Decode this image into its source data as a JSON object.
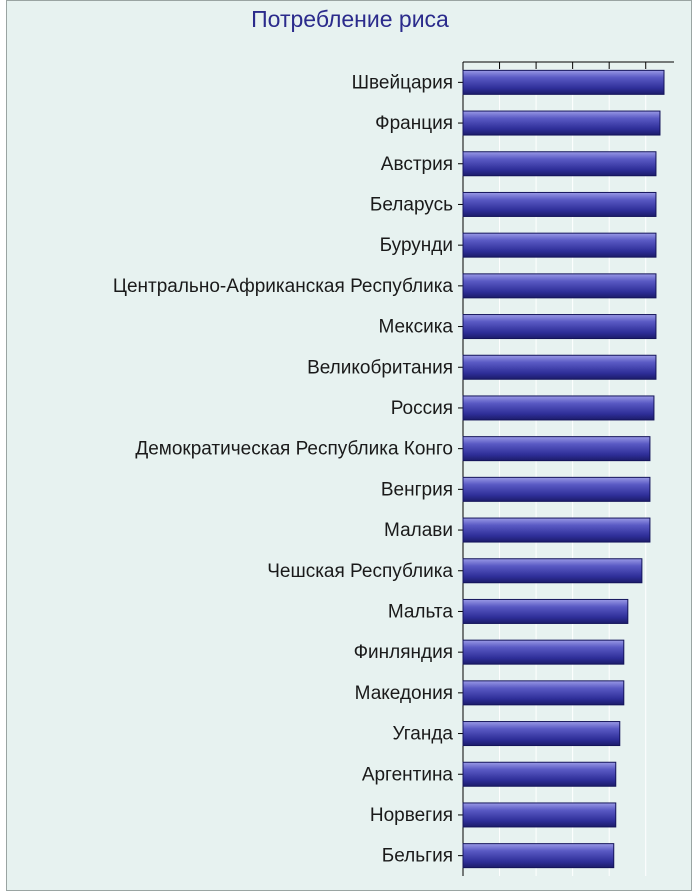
{
  "chart_data": {
    "type": "bar",
    "orientation": "horizontal",
    "title": "Потребление риса",
    "xlabel": "",
    "ylabel": "",
    "xlim": [
      0,
      100
    ],
    "grid": true,
    "categories": [
      "Швейцария",
      "Франция",
      "Австрия",
      "Беларусь",
      "Бурунди",
      "Центрально-Африканская Республика",
      "Мексика",
      "Великобритания",
      "Россия",
      "Демократическая Республика Конго",
      "Венгрия",
      "Малави",
      "Чешская Республика",
      "Мальта",
      "Финляндия",
      "Македония",
      "Уганда",
      "Аргентина",
      "Норвегия",
      "Бельгия"
    ],
    "values": [
      100,
      98,
      96,
      96,
      96,
      96,
      96,
      96,
      95,
      93,
      93,
      93,
      89,
      82,
      80,
      80,
      78,
      76,
      76,
      75
    ],
    "bar_color": "#3a3aa8"
  }
}
